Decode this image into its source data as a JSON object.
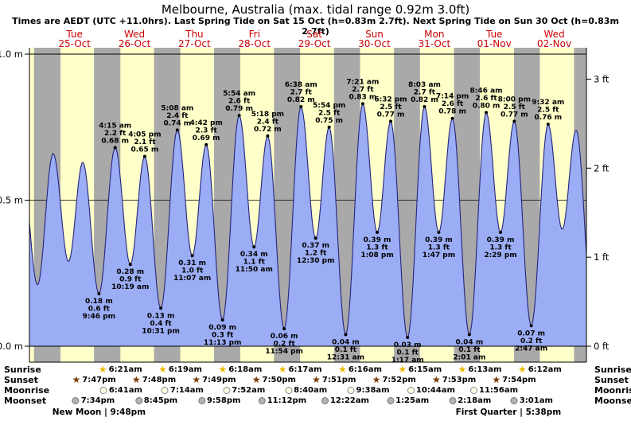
{
  "header": {
    "title": "Melbourne, Australia (max. tidal range 0.92m 3.0ft)",
    "subtitle": "Times are AEDT (UTC +11.0hrs). Last Spring Tide on Sat 15 Oct (h=0.83m 2.7ft). Next Spring Tide on Sun 30 Oct (h=0.83m 2.7ft)"
  },
  "chart_data": {
    "type": "area",
    "title": "Melbourne, Australia (max. tidal range 0.92m 3.0ft)",
    "ylabel_left_unit": "m",
    "ylabel_right_unit": "ft",
    "ylim_m": [
      0.0,
      1.08
    ],
    "days": [
      {
        "name": "Tue",
        "date": "25-Oct"
      },
      {
        "name": "Wed",
        "date": "26-Oct"
      },
      {
        "name": "Thu",
        "date": "27-Oct"
      },
      {
        "name": "Fri",
        "date": "28-Oct"
      },
      {
        "name": "Sat",
        "date": "29-Oct"
      },
      {
        "name": "Sun",
        "date": "30-Oct"
      },
      {
        "name": "Mon",
        "date": "31-Oct"
      },
      {
        "name": "Tue",
        "date": "01-Nov"
      },
      {
        "name": "Wed",
        "date": "02-Nov"
      }
    ],
    "y_axis_left_ticks": [
      {
        "label": "0.0 m",
        "value": 0.0
      },
      {
        "label": "0.5 m",
        "value": 0.5
      },
      {
        "label": "1.0 m",
        "value": 1.0
      }
    ],
    "y_axis_right_ticks": [
      {
        "label": "0 ft",
        "value": 0
      },
      {
        "label": "1 ft",
        "value": 1
      },
      {
        "label": "2 ft",
        "value": 2
      },
      {
        "label": "3 ft",
        "value": 3
      }
    ],
    "high_tides": [
      {
        "day": 1,
        "time": "4:15 am",
        "height_m": 0.68,
        "height_ft": 2.2
      },
      {
        "day": 1,
        "time": "4:05 pm",
        "height_m": 0.65,
        "height_ft": 2.1
      },
      {
        "day": 2,
        "time": "5:08 am",
        "height_m": 0.74,
        "height_ft": 2.4
      },
      {
        "day": 2,
        "time": "4:42 pm",
        "height_m": 0.69,
        "height_ft": 2.3
      },
      {
        "day": 3,
        "time": "5:54 am",
        "height_m": 0.79,
        "height_ft": 2.6
      },
      {
        "day": 3,
        "time": "5:18 pm",
        "height_m": 0.72,
        "height_ft": 2.4
      },
      {
        "day": 4,
        "time": "6:38 am",
        "height_m": 0.82,
        "height_ft": 2.7
      },
      {
        "day": 4,
        "time": "5:54 pm",
        "height_m": 0.75,
        "height_ft": 2.5
      },
      {
        "day": 5,
        "time": "7:21 am",
        "height_m": 0.83,
        "height_ft": 2.7
      },
      {
        "day": 5,
        "time": "6:32 pm",
        "height_m": 0.77,
        "height_ft": 2.5
      },
      {
        "day": 6,
        "time": "8:03 am",
        "height_m": 0.82,
        "height_ft": 2.7
      },
      {
        "day": 6,
        "time": "7:14 pm",
        "height_m": 0.78,
        "height_ft": 2.6
      },
      {
        "day": 7,
        "time": "8:46 am",
        "height_m": 0.8,
        "height_ft": 2.6
      },
      {
        "day": 7,
        "time": "8:00 pm",
        "height_m": 0.77,
        "height_ft": 2.5
      },
      {
        "day": 8,
        "time": "9:32 am",
        "height_m": 0.76,
        "height_ft": 2.5
      }
    ],
    "low_tides": [
      {
        "day": 0,
        "time": "9:46 pm",
        "height_m": 0.18,
        "height_ft": 0.6
      },
      {
        "day": 1,
        "time": "10:19 am",
        "height_m": 0.28,
        "height_ft": 0.9
      },
      {
        "day": 1,
        "time": "10:31 pm",
        "height_m": 0.13,
        "height_ft": 0.4
      },
      {
        "day": 2,
        "time": "11:07 am",
        "height_m": 0.31,
        "height_ft": 1.0
      },
      {
        "day": 2,
        "time": "11:13 pm",
        "height_m": 0.09,
        "height_ft": 0.3
      },
      {
        "day": 3,
        "time": "11:50 am",
        "height_m": 0.34,
        "height_ft": 1.1
      },
      {
        "day": 3,
        "time": "11:54 pm",
        "height_m": 0.06,
        "height_ft": 0.2
      },
      {
        "day": 4,
        "time": "12:30 pm",
        "height_m": 0.37,
        "height_ft": 1.2
      },
      {
        "day": 5,
        "time": "12:31 am",
        "height_m": 0.04,
        "height_ft": 0.1
      },
      {
        "day": 5,
        "time": "1:08 pm",
        "height_m": 0.39,
        "height_ft": 1.3
      },
      {
        "day": 6,
        "time": "1:17 am",
        "height_m": 0.03,
        "height_ft": 0.1
      },
      {
        "day": 6,
        "time": "1:47 pm",
        "height_m": 0.39,
        "height_ft": 1.3
      },
      {
        "day": 7,
        "time": "2:01 am",
        "height_m": 0.04,
        "height_ft": 0.1
      },
      {
        "day": 7,
        "time": "2:29 pm",
        "height_m": 0.39,
        "height_ft": 1.3
      },
      {
        "day": 8,
        "time": "2:47 am",
        "height_m": 0.07,
        "height_ft": 0.2
      }
    ],
    "unlabeled_curve_shape_points": [
      {
        "day": -1,
        "time": "2:55 pm",
        "height_m": 0.62
      },
      {
        "day": -1,
        "time": "9:10 pm",
        "height_m": 0.21
      },
      {
        "day": 0,
        "time": "3:25 am",
        "height_m": 0.66
      },
      {
        "day": 0,
        "time": "9:35 am",
        "height_m": 0.29
      },
      {
        "day": 0,
        "time": "3:18 pm",
        "height_m": 0.63
      },
      {
        "day": 8,
        "time": "3:10 pm",
        "height_m": 0.4
      },
      {
        "day": 8,
        "time": "8:45 pm",
        "height_m": 0.74
      },
      {
        "day": 9,
        "time": "3:40 am",
        "height_m": 0.08
      }
    ],
    "colors": {
      "day_band": "#ffffc9",
      "night_band": "#a9a9a9",
      "curve_fill": "#9badf5",
      "curve_stroke": "#24247e",
      "day_label": "#cc0000",
      "sunrise_star": "#e8b800",
      "sunset_star": "#7b3a00"
    }
  },
  "astro": {
    "rows": [
      {
        "id": "sunrise",
        "label": "Sunrise",
        "icon": "star",
        "entries": [
          {
            "day": 1,
            "time": "6:21am"
          },
          {
            "day": 2,
            "time": "6:19am"
          },
          {
            "day": 3,
            "time": "6:18am"
          },
          {
            "day": 4,
            "time": "6:17am"
          },
          {
            "day": 5,
            "time": "6:16am"
          },
          {
            "day": 6,
            "time": "6:15am"
          },
          {
            "day": 7,
            "time": "6:13am"
          },
          {
            "day": 8,
            "time": "6:12am"
          }
        ]
      },
      {
        "id": "sunset",
        "label": "Sunset",
        "icon": "star",
        "entries": [
          {
            "day": 0,
            "time": "7:47pm"
          },
          {
            "day": 1,
            "time": "7:48pm"
          },
          {
            "day": 2,
            "time": "7:49pm"
          },
          {
            "day": 3,
            "time": "7:50pm"
          },
          {
            "day": 4,
            "time": "7:51pm"
          },
          {
            "day": 5,
            "time": "7:52pm"
          },
          {
            "day": 6,
            "time": "7:53pm"
          },
          {
            "day": 7,
            "time": "7:54pm"
          }
        ]
      },
      {
        "id": "moonrise",
        "label": "Moonrise",
        "icon": "circle",
        "entries": [
          {
            "day": 1,
            "time": "6:41am"
          },
          {
            "day": 2,
            "time": "7:14am"
          },
          {
            "day": 3,
            "time": "7:52am"
          },
          {
            "day": 4,
            "time": "8:40am"
          },
          {
            "day": 5,
            "time": "9:38am"
          },
          {
            "day": 6,
            "time": "10:44am"
          },
          {
            "day": 7,
            "time": "11:56am"
          }
        ]
      },
      {
        "id": "moonset",
        "label": "Moonset",
        "icon": "circle",
        "entries": [
          {
            "day": 0,
            "time": "7:34pm"
          },
          {
            "day": 1,
            "time": "8:45pm"
          },
          {
            "day": 2,
            "time": "9:58pm"
          },
          {
            "day": 3,
            "time": "11:12pm"
          },
          {
            "day": 5,
            "time": "12:22am"
          },
          {
            "day": 6,
            "time": "1:25am"
          },
          {
            "day": 7,
            "time": "2:18am"
          },
          {
            "day": 8,
            "time": "3:01am"
          }
        ]
      }
    ],
    "phases": [
      {
        "label": "New Moon",
        "time": "9:48pm",
        "day": 0
      },
      {
        "label": "First Quarter",
        "time": "5:38pm",
        "day": 7
      }
    ]
  }
}
